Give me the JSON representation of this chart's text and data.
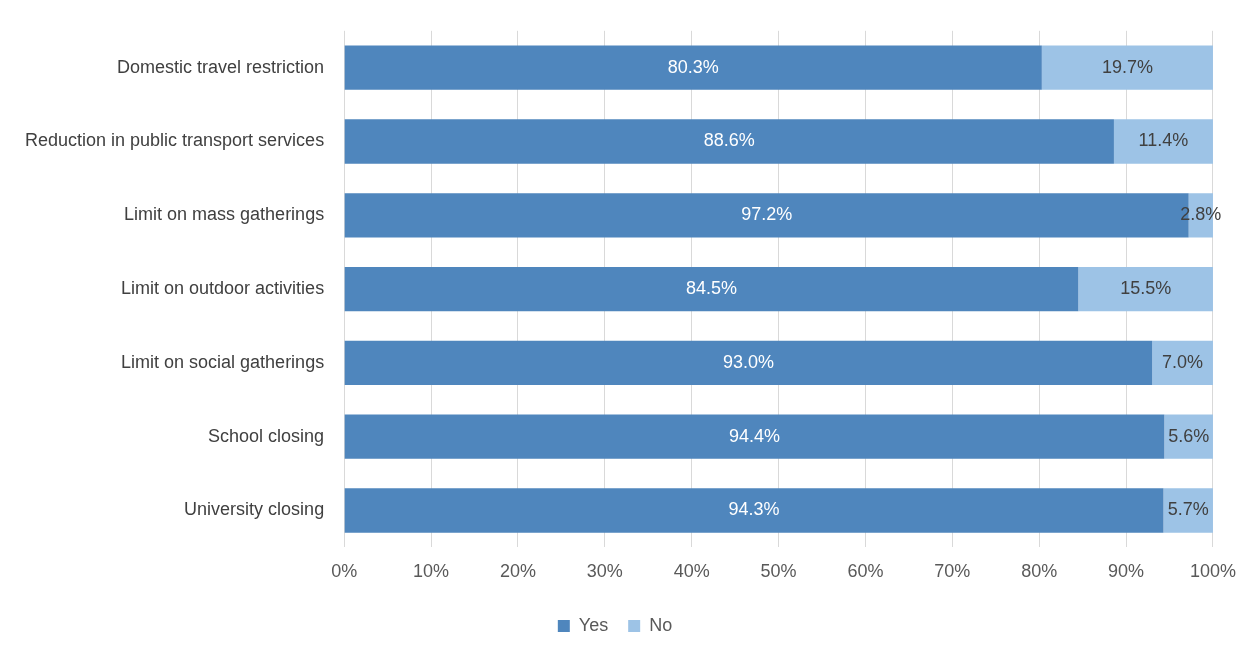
{
  "chart_data": {
    "type": "bar",
    "orientation": "horizontal",
    "stacked": true,
    "categories": [
      "Domestic travel restriction",
      "Reduction in public transport services",
      "Limit on mass gatherings",
      "Limit on outdoor activities",
      "Limit on social gatherings",
      "School closing",
      "University closing"
    ],
    "series": [
      {
        "name": "Yes",
        "color": "#4f86bd",
        "values": [
          80.3,
          88.6,
          97.2,
          84.5,
          93.0,
          94.4,
          94.3
        ],
        "value_labels": [
          "80.3%",
          "88.6%",
          "97.2%",
          "84.5%",
          "93.0%",
          "94.4%",
          "94.3%"
        ]
      },
      {
        "name": "No",
        "color": "#9dc3e6",
        "values": [
          19.7,
          11.4,
          2.8,
          15.5,
          7.0,
          5.6,
          5.7
        ],
        "value_labels": [
          "19.7%",
          "11.4%",
          "2.8%",
          "15.5%",
          "7.0%",
          "5.6%",
          "5.7%"
        ]
      }
    ],
    "xlim": [
      0,
      100
    ],
    "xticks": [
      {
        "value": 0,
        "label": "0%"
      },
      {
        "value": 10,
        "label": "10%"
      },
      {
        "value": 20,
        "label": "20%"
      },
      {
        "value": 30,
        "label": "30%"
      },
      {
        "value": 40,
        "label": "40%"
      },
      {
        "value": 50,
        "label": "50%"
      },
      {
        "value": 60,
        "label": "60%"
      },
      {
        "value": 70,
        "label": "70%"
      },
      {
        "value": 80,
        "label": "80%"
      },
      {
        "value": 90,
        "label": "90%"
      },
      {
        "value": 100,
        "label": "100%"
      }
    ],
    "grid": "x",
    "legend": "bottom"
  }
}
